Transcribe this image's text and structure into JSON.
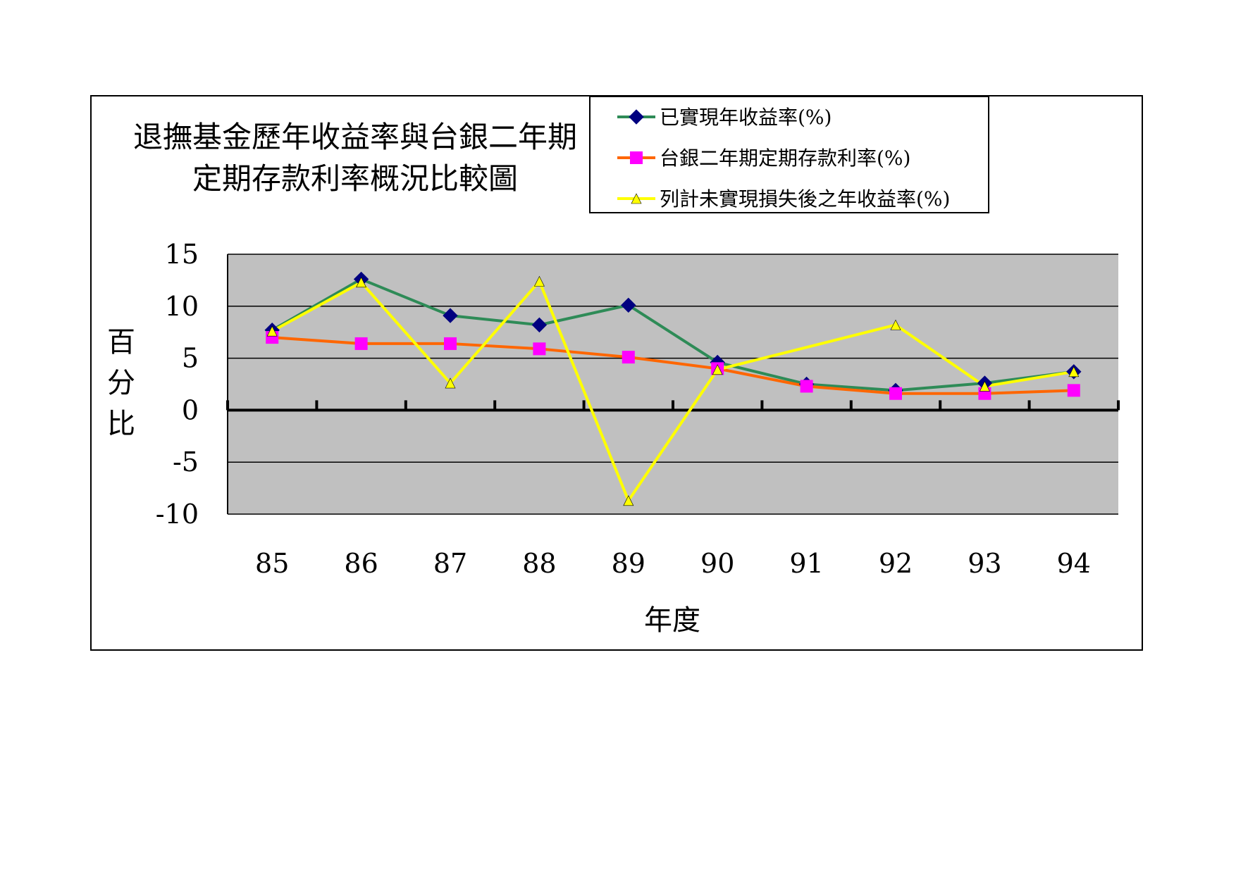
{
  "chart_data": {
    "type": "line",
    "title": [
      "退撫基金歷年收益率與台銀二年期",
      "定期存款利率概況比較圖"
    ],
    "xlabel": "年度",
    "ylabel": "百分比",
    "ylim": [
      -10,
      15
    ],
    "yticks": [
      "15",
      "10",
      "5",
      "0",
      "-5",
      "-10"
    ],
    "categories": [
      "85",
      "86",
      "87",
      "88",
      "89",
      "90",
      "91",
      "92",
      "93",
      "94"
    ],
    "legend_position": "top-right",
    "plot_background": "#c0c0c0",
    "series": [
      {
        "name": "已實現年收益率(%)",
        "color": "#2e8b57",
        "marker": "diamond",
        "marker_color": "#000080",
        "values": [
          7.7,
          12.6,
          9.1,
          8.2,
          10.1,
          4.6,
          2.5,
          1.9,
          2.6,
          3.7
        ]
      },
      {
        "name": "台銀二年期定期存款利率(%)",
        "color": "#ff6600",
        "marker": "square",
        "marker_color": "#ff00ff",
        "values": [
          7.0,
          6.4,
          6.4,
          5.9,
          5.1,
          4.0,
          2.3,
          1.6,
          1.6,
          1.9
        ]
      },
      {
        "name": "列計未實現損失後之年收益率(%)",
        "color": "#ffff00",
        "marker": "triangle",
        "marker_color": "#ffff00",
        "values": [
          7.6,
          12.3,
          2.6,
          12.4,
          -8.7,
          3.9,
          null,
          8.2,
          2.3,
          3.7
        ]
      }
    ]
  }
}
